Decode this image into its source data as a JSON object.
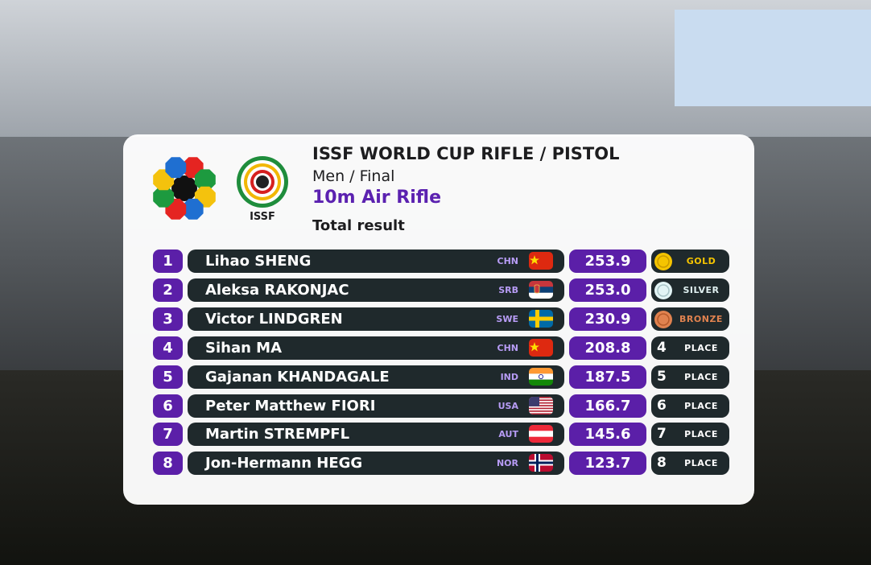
{
  "header": {
    "title": "ISSF WORLD CUP RIFLE / PISTOL",
    "subtitle": "Men / Final",
    "event": "10m Air Rifle",
    "result_type": "Total result",
    "logo_text": "ISSF"
  },
  "rows": [
    {
      "rank": "1",
      "name": "Lihao SHENG",
      "country": "CHN",
      "score": "253.9",
      "badge": "GOLD"
    },
    {
      "rank": "2",
      "name": "Aleksa RAKONJAC",
      "country": "SRB",
      "score": "253.0",
      "badge": "SILVER"
    },
    {
      "rank": "3",
      "name": "Victor LINDGREN",
      "country": "SWE",
      "score": "230.9",
      "badge": "BRONZE"
    },
    {
      "rank": "4",
      "name": "Sihan MA",
      "country": "CHN",
      "score": "208.8",
      "place": "4",
      "badge": "PLACE"
    },
    {
      "rank": "5",
      "name": "Gajanan KHANDAGALE",
      "country": "IND",
      "score": "187.5",
      "place": "5",
      "badge": "PLACE"
    },
    {
      "rank": "6",
      "name": "Peter Matthew FIORI",
      "country": "USA",
      "score": "166.7",
      "place": "6",
      "badge": "PLACE"
    },
    {
      "rank": "7",
      "name": "Martin STREMPFL",
      "country": "AUT",
      "score": "145.6",
      "place": "7",
      "badge": "PLACE"
    },
    {
      "rank": "8",
      "name": "Jon-Hermann HEGG",
      "country": "NOR",
      "score": "123.7",
      "place": "8",
      "badge": "PLACE"
    }
  ]
}
